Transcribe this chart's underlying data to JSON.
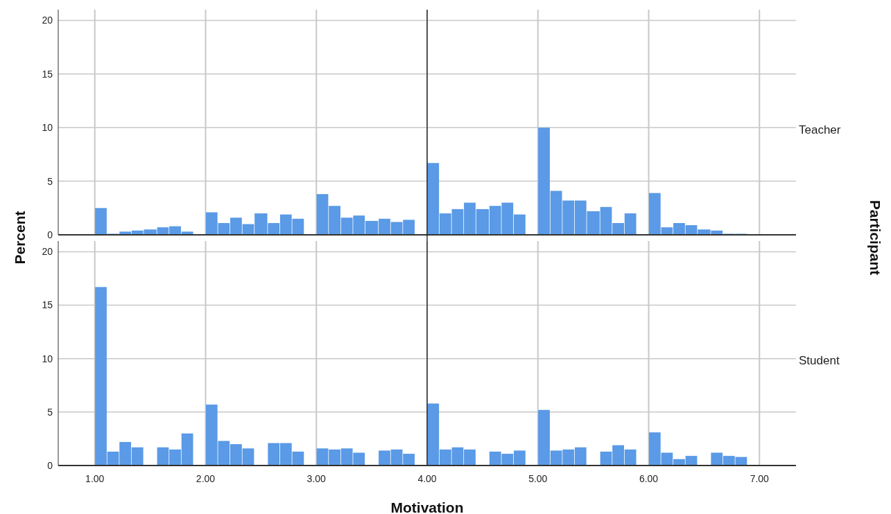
{
  "chart_data": [
    {
      "type": "histogram",
      "ylabel": "Percent",
      "y2label": "Participant",
      "annotations": [
        "Teacher"
      ],
      "color": "#5a9ae6",
      "bins": [
        1,
        1.11,
        1.22,
        1.33,
        1.44,
        1.56,
        1.67,
        1.78,
        1.89,
        2,
        2.11,
        2.22,
        2.33,
        2.44,
        2.56,
        2.67,
        2.78,
        2.89,
        3,
        3.11,
        3.22,
        3.33,
        3.44,
        3.56,
        3.67,
        3.78,
        3.89,
        4,
        4.11,
        4.22,
        4.33,
        4.44,
        4.56,
        4.67,
        4.78,
        4.89,
        5,
        5.11,
        5.22,
        5.33,
        5.44,
        5.56,
        5.67,
        5.78,
        5.89,
        6,
        6.11,
        6.22,
        6.33,
        6.44,
        6.56,
        6.67,
        6.78,
        6.89
      ],
      "values": [
        2.5,
        0.1,
        0.3,
        0.4,
        0.5,
        0.7,
        0.8,
        0.3,
        0,
        2.1,
        1.1,
        1.6,
        1.0,
        2.0,
        1.1,
        1.9,
        1.5,
        0,
        3.8,
        2.7,
        1.6,
        1.8,
        1.3,
        1.5,
        1.2,
        1.4,
        0,
        6.7,
        2.0,
        2.4,
        3.0,
        2.4,
        2.7,
        3.0,
        1.9,
        0,
        10.0,
        4.1,
        3.2,
        3.2,
        2.2,
        2.6,
        1.1,
        2.0,
        0,
        3.9,
        0.7,
        1.1,
        0.9,
        0.5,
        0.4,
        0.1,
        0.1
      ],
      "xlim": [
        0.67,
        7.33
      ],
      "ylim": [
        0,
        21
      ],
      "yticks": [
        0,
        5,
        10,
        15,
        20
      ],
      "tick_labels": "y",
      "grid": true,
      "ref_lines": [
        {
          "axis": "x",
          "value": 4,
          "color": "#000000"
        }
      ]
    },
    {
      "type": "histogram",
      "xlabel": "Motivation",
      "annotations": [
        "Student"
      ],
      "color": "#5a9ae6",
      "bins": [
        1,
        1.11,
        1.22,
        1.33,
        1.44,
        1.56,
        1.67,
        1.78,
        1.89,
        2,
        2.11,
        2.22,
        2.33,
        2.44,
        2.56,
        2.67,
        2.78,
        2.89,
        3,
        3.11,
        3.22,
        3.33,
        3.44,
        3.56,
        3.67,
        3.78,
        3.89,
        4,
        4.11,
        4.22,
        4.33,
        4.44,
        4.56,
        4.67,
        4.78,
        4.89,
        5,
        5.11,
        5.22,
        5.33,
        5.44,
        5.56,
        5.67,
        5.78,
        5.89,
        6,
        6.11,
        6.22,
        6.33,
        6.44,
        6.56,
        6.67,
        6.78,
        6.89
      ],
      "values": [
        16.7,
        1.3,
        2.2,
        1.7,
        0,
        1.7,
        1.5,
        3.0,
        0,
        5.7,
        2.3,
        2.0,
        1.6,
        0,
        2.1,
        2.1,
        1.3,
        0,
        1.6,
        1.5,
        1.6,
        1.2,
        0,
        1.4,
        1.5,
        1.1,
        0,
        5.8,
        1.5,
        1.7,
        1.5,
        0,
        1.3,
        1.1,
        1.4,
        0,
        5.2,
        1.4,
        1.5,
        1.7,
        0,
        1.3,
        1.9,
        1.5,
        0,
        3.1,
        1.2,
        0.6,
        0.9,
        0,
        1.2,
        0.9,
        0.8
      ],
      "xlim": [
        0.67,
        7.33
      ],
      "xticks": [
        {
          "value": 1,
          "label": "1.00"
        },
        {
          "value": 2,
          "label": "2.00"
        },
        {
          "value": 3,
          "label": "3.00"
        },
        {
          "value": 4,
          "label": "4.00"
        },
        {
          "value": 5,
          "label": "5.00"
        },
        {
          "value": 6,
          "label": "6.00"
        },
        {
          "value": 7,
          "label": "7.00"
        }
      ],
      "ylim": [
        0,
        21
      ],
      "yticks": [
        0,
        5,
        10,
        15,
        20
      ],
      "grid": true,
      "ref_lines": [
        {
          "axis": "x",
          "value": 4,
          "color": "#000000"
        }
      ]
    }
  ]
}
